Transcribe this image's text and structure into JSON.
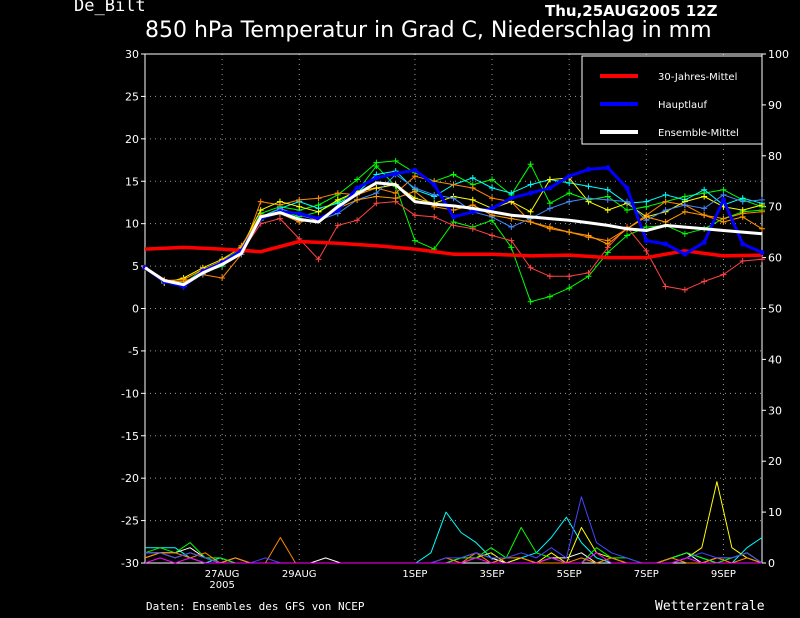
{
  "header": {
    "station": "De_Bilt",
    "run": "Thu,25AUG2005 12Z",
    "title": "850 hPa Temperatur in Grad C, Niederschlag in mm"
  },
  "footer": {
    "credit": "Daten: Ensembles des GFS von NCEP",
    "brand": "Wetterzentrale"
  },
  "chart_data": {
    "type": "line",
    "x_ticks": [
      {
        "day": 2,
        "label": "27AUG",
        "sub": "2005"
      },
      {
        "day": 4,
        "label": "29AUG"
      },
      {
        "day": 7,
        "label": "1SEP"
      },
      {
        "day": 9,
        "label": "3SEP"
      },
      {
        "day": 11,
        "label": "5SEP"
      },
      {
        "day": 13,
        "label": "7SEP"
      },
      {
        "day": 15,
        "label": "9SEP"
      }
    ],
    "xlim": [
      0,
      16
    ],
    "ylim_left": [
      -30,
      30
    ],
    "yticks_left": [
      -30,
      -25,
      -20,
      -15,
      -10,
      -5,
      0,
      5,
      10,
      15,
      20,
      25,
      30
    ],
    "ylim_right": [
      0,
      100
    ],
    "yticks_right": [
      0,
      10,
      20,
      30,
      40,
      50,
      60,
      70,
      80,
      90,
      100
    ],
    "grid": true,
    "legend_position": "top-right",
    "legend": [
      {
        "label": "30-Jahres-Mittel",
        "color": "#ff0000"
      },
      {
        "label": "Hauptlauf",
        "color": "#0000ff"
      },
      {
        "label": "Ensemble-Mittel",
        "color": "#ffffff"
      }
    ],
    "climate": {
      "name": "30-Jahres-Mittel",
      "color": "#ff0000",
      "x": [
        0,
        1,
        2,
        3,
        4,
        5,
        6,
        7,
        8,
        9,
        10,
        11,
        12,
        13,
        14,
        15,
        16
      ],
      "y": [
        7.0,
        7.2,
        7.0,
        6.7,
        7.9,
        7.7,
        7.4,
        7.0,
        6.4,
        6.4,
        6.2,
        6.3,
        6.0,
        6.0,
        6.8,
        6.2,
        6.3
      ]
    },
    "main_run": {
      "name": "Hauptlauf",
      "color": "#0000ff",
      "x": [
        0,
        0.5,
        1,
        1.5,
        2,
        2.5,
        3,
        3.5,
        4,
        4.5,
        5,
        5.5,
        6,
        6.5,
        7,
        7.5,
        8,
        8.5,
        9,
        9.5,
        10,
        10.5,
        11,
        11.5,
        12,
        12.5,
        13,
        13.5,
        14,
        14.5,
        15,
        15.5,
        16
      ],
      "y": [
        4.8,
        3.2,
        2.6,
        4.4,
        5.4,
        6.8,
        10.6,
        11.4,
        11.2,
        10.6,
        11.6,
        14.2,
        15.4,
        15.9,
        16.3,
        14.6,
        10.8,
        11.4,
        11.8,
        13.0,
        13.6,
        14.2,
        15.6,
        16.4,
        16.6,
        14.2,
        8.0,
        7.6,
        6.4,
        7.8,
        12.8,
        7.6,
        6.6
      ]
    },
    "ensemble_mean": {
      "name": "Ensemble-Mittel",
      "color": "#ffffff",
      "x": [
        0,
        0.5,
        1,
        1.5,
        2,
        2.5,
        3,
        3.5,
        4,
        4.5,
        5,
        5.5,
        6,
        6.5,
        7,
        7.5,
        8,
        8.5,
        9,
        9.5,
        10,
        10.5,
        11,
        11.5,
        12,
        12.5,
        13,
        13.5,
        14,
        14.5,
        15,
        15.5,
        16
      ],
      "y": [
        4.8,
        3.3,
        2.8,
        4.2,
        5.2,
        6.5,
        10.8,
        11.3,
        10.5,
        10.2,
        12.0,
        13.5,
        14.8,
        14.6,
        12.6,
        12.3,
        12.1,
        11.8,
        11.4,
        11.0,
        10.8,
        10.6,
        10.4,
        10.1,
        9.8,
        9.4,
        9.2,
        9.8,
        9.6,
        9.4,
        9.2,
        9.0,
        8.8
      ]
    },
    "ensemble_members": [
      {
        "color": "#00ff00",
        "y": [
          4.8,
          3.2,
          2.9,
          4.6,
          5.6,
          7.0,
          11.2,
          12.0,
          11.6,
          12.2,
          13.4,
          15.2,
          17.2,
          17.4,
          16.0,
          15.0,
          15.8,
          14.6,
          15.2,
          13.4,
          17.0,
          12.4,
          13.6,
          12.8,
          13.2,
          11.6,
          12.0,
          12.6,
          13.2,
          13.6,
          14.0,
          12.8,
          12.0
        ]
      },
      {
        "color": "#00ff00",
        "y": [
          4.8,
          3.3,
          3.0,
          4.2,
          5.0,
          6.6,
          10.4,
          11.6,
          10.8,
          11.4,
          12.6,
          13.8,
          16.8,
          14.4,
          8.0,
          7.0,
          10.2,
          9.6,
          10.4,
          7.2,
          0.8,
          1.4,
          2.4,
          3.8,
          6.6,
          8.6,
          9.6,
          9.8,
          8.8,
          9.4,
          10.6,
          11.4,
          11.6
        ]
      },
      {
        "color": "#00ffff",
        "y": [
          4.8,
          3.3,
          2.7,
          4.3,
          5.4,
          6.8,
          10.8,
          11.8,
          12.6,
          11.8,
          12.4,
          13.6,
          15.8,
          16.2,
          14.0,
          13.2,
          14.6,
          15.4,
          14.2,
          13.6,
          14.6,
          15.2,
          14.8,
          14.4,
          14.0,
          12.4,
          12.6,
          13.4,
          12.8,
          14.0,
          12.2,
          13.0,
          12.4
        ]
      },
      {
        "color": "#ff8800",
        "y": [
          4.8,
          3.2,
          3.2,
          4.0,
          3.6,
          6.4,
          12.6,
          12.2,
          12.8,
          13.0,
          13.6,
          13.4,
          14.2,
          13.6,
          15.6,
          15.0,
          14.6,
          14.2,
          13.0,
          12.6,
          10.2,
          9.4,
          9.0,
          8.4,
          8.0,
          9.4,
          11.0,
          12.6,
          12.2,
          11.0,
          10.6,
          11.2,
          11.4
        ]
      },
      {
        "color": "#ff4444",
        "y": [
          4.8,
          3.4,
          2.8,
          4.4,
          5.4,
          6.6,
          10.0,
          10.6,
          8.2,
          5.8,
          9.8,
          10.4,
          12.4,
          12.6,
          11.0,
          10.8,
          9.8,
          9.4,
          8.6,
          8.0,
          4.8,
          3.8,
          3.8,
          4.2,
          7.2,
          9.6,
          6.8,
          2.6,
          2.2,
          3.2,
          4.0,
          5.6,
          5.8
        ]
      },
      {
        "color": "#ffff00",
        "y": [
          4.8,
          3.0,
          3.6,
          4.8,
          5.8,
          7.2,
          11.6,
          12.6,
          12.0,
          11.4,
          12.8,
          13.8,
          14.2,
          14.6,
          13.0,
          12.4,
          13.2,
          12.8,
          11.8,
          12.6,
          11.4,
          15.2,
          15.4,
          12.6,
          11.6,
          12.4,
          10.8,
          11.4,
          12.6,
          13.2,
          12.0,
          11.6,
          12.2
        ]
      },
      {
        "color": "#4488ff",
        "y": [
          4.8,
          3.1,
          2.6,
          4.1,
          5.2,
          6.4,
          10.6,
          11.8,
          11.0,
          10.4,
          11.2,
          12.8,
          13.6,
          15.8,
          14.2,
          13.4,
          13.0,
          11.4,
          10.8,
          9.6,
          10.6,
          11.8,
          12.6,
          13.0,
          12.8,
          12.6,
          10.4,
          11.6,
          12.2,
          11.8,
          13.4,
          12.6,
          12.8
        ]
      },
      {
        "color": "#ff9900",
        "y": [
          4.8,
          3.3,
          3.4,
          4.6,
          5.6,
          7.4,
          11.0,
          11.2,
          10.2,
          10.6,
          11.8,
          12.8,
          13.2,
          13.0,
          13.8,
          12.0,
          11.6,
          12.2,
          11.0,
          10.6,
          10.2,
          9.6,
          9.0,
          8.6,
          7.6,
          9.4,
          10.8,
          10.2,
          11.4,
          11.0,
          10.2,
          10.8,
          9.4
        ]
      }
    ],
    "precip_axis": "right",
    "precip_members": [
      {
        "color": "#00ffff",
        "v": [
          3,
          3,
          3,
          1,
          0,
          1,
          0,
          0,
          0,
          0,
          0,
          0,
          0,
          0,
          0,
          0,
          0,
          0,
          0,
          2,
          10,
          6,
          4,
          1,
          0,
          1,
          2,
          5,
          9,
          4,
          1,
          0,
          0,
          0,
          0,
          1,
          2,
          1,
          0,
          0,
          3,
          5
        ]
      },
      {
        "color": "#ffffff",
        "v": [
          2,
          2,
          2,
          3,
          1,
          0,
          1,
          0,
          0,
          0,
          0,
          0,
          1,
          0,
          0,
          0,
          0,
          0,
          0,
          0,
          0,
          1,
          2,
          1,
          0,
          0,
          0,
          1,
          1,
          2,
          0,
          0,
          0,
          0,
          0,
          1,
          2,
          0,
          1,
          1,
          2,
          0
        ]
      },
      {
        "color": "#ffff00",
        "v": [
          1,
          2,
          1,
          2,
          1,
          0,
          0,
          0,
          0,
          0,
          0,
          0,
          0,
          0,
          0,
          0,
          0,
          0,
          0,
          0,
          0,
          0,
          1,
          2,
          0,
          1,
          0,
          2,
          0,
          7,
          2,
          1,
          0,
          0,
          0,
          0,
          1,
          3,
          16,
          3,
          1,
          0
        ]
      },
      {
        "color": "#00ff00",
        "v": [
          2,
          3,
          2,
          4,
          1,
          1,
          0,
          0,
          0,
          0,
          0,
          0,
          0,
          0,
          0,
          0,
          0,
          0,
          0,
          0,
          0,
          1,
          1,
          3,
          1,
          7,
          2,
          1,
          0,
          0,
          3,
          1,
          1,
          0,
          0,
          1,
          2,
          1,
          0,
          1,
          2,
          0
        ]
      },
      {
        "color": "#ff8800",
        "v": [
          1,
          2,
          2,
          1,
          2,
          0,
          1,
          0,
          0,
          5,
          0,
          0,
          0,
          0,
          0,
          0,
          0,
          0,
          0,
          0,
          1,
          0,
          2,
          0,
          1,
          1,
          0,
          0,
          0,
          1,
          0,
          1,
          0,
          0,
          0,
          1,
          0,
          0,
          1,
          0,
          1,
          0
        ]
      },
      {
        "color": "#4444ff",
        "v": [
          2,
          2,
          1,
          2,
          1,
          0,
          0,
          0,
          1,
          0,
          0,
          0,
          0,
          0,
          0,
          0,
          0,
          0,
          0,
          0,
          1,
          1,
          2,
          1,
          1,
          2,
          1,
          3,
          1,
          13,
          4,
          2,
          1,
          0,
          0,
          0,
          1,
          2,
          1,
          1,
          2,
          0
        ]
      },
      {
        "color": "#ff00ff",
        "v": [
          0,
          1,
          0,
          1,
          0,
          0,
          0,
          0,
          0,
          0,
          0,
          0,
          0,
          0,
          0,
          0,
          0,
          0,
          0,
          0,
          0,
          0,
          1,
          0,
          0,
          0,
          0,
          1,
          0,
          0,
          2,
          0,
          0,
          0,
          0,
          0,
          1,
          0,
          0,
          0,
          0,
          0
        ]
      }
    ]
  }
}
